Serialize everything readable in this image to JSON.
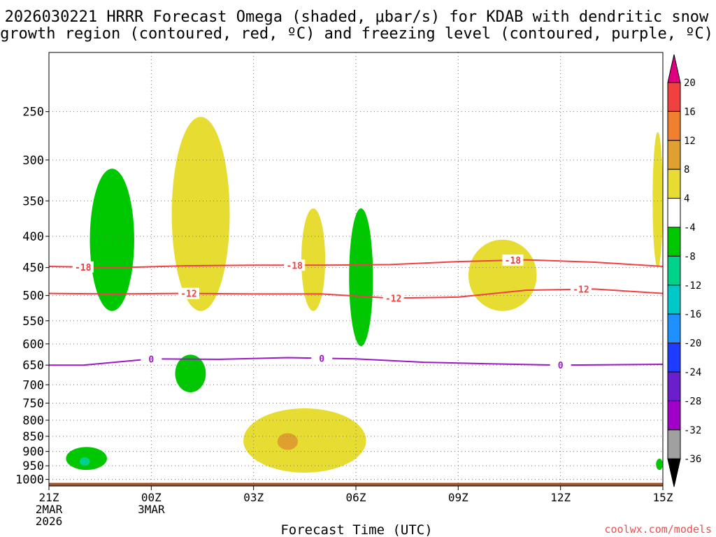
{
  "chart_data": {
    "type": "heatmap",
    "title_lines": [
      "2026030221 HRRR Forecast Omega (shaded, μbar/s) for KDAB with dendritic snow",
      "growth region (contoured, red, ºC) and freezing level (contoured, purple, ºC)"
    ],
    "xlabel": "Forecast Time (UTC)",
    "credit": "coolwx.com/models",
    "x_ticks": [
      {
        "hour": 0,
        "lines": [
          "21Z",
          "2MAR",
          "2026"
        ]
      },
      {
        "hour": 3,
        "lines": [
          "00Z",
          "3MAR"
        ]
      },
      {
        "hour": 6,
        "lines": [
          "03Z"
        ]
      },
      {
        "hour": 9,
        "lines": [
          "06Z"
        ]
      },
      {
        "hour": 12,
        "lines": [
          "09Z"
        ]
      },
      {
        "hour": 15,
        "lines": [
          "12Z"
        ]
      },
      {
        "hour": 18,
        "lines": [
          "15Z"
        ]
      }
    ],
    "x_range_hours": [
      0,
      18
    ],
    "y_range_hpa": [
      1025,
      200
    ],
    "y_ticks": [
      250,
      300,
      350,
      400,
      450,
      500,
      550,
      600,
      650,
      700,
      750,
      800,
      850,
      900,
      950,
      1000
    ],
    "colorbar": {
      "labels": [
        "20",
        "16",
        "12",
        "8",
        "4",
        "-4",
        "-8",
        "-12",
        "-16",
        "-20",
        "-24",
        "-28",
        "-32",
        "-36"
      ],
      "top_color": "#e0007f",
      "colors": [
        "#f04040",
        "#f07f30",
        "#e0a030",
        "#e6dc32",
        "#ffffff",
        "#00c800",
        "#00d28c",
        "#00c8c8",
        "#1e90ff",
        "#1e3cff",
        "#6a1ecc",
        "#a000c8",
        "#a0a0a0"
      ],
      "bottom_color": "#000000"
    },
    "omega_areas": [
      {
        "level": "-4 to -8",
        "color": "#00c800",
        "hour_range": [
          1.2,
          2.5
        ],
        "hpa_range": [
          310,
          530
        ]
      },
      {
        "level": "4 to 8",
        "color": "#e6dc32",
        "hour_range": [
          3.6,
          5.3
        ],
        "hpa_range": [
          255,
          530
        ]
      },
      {
        "level": "4 to 8",
        "color": "#e6dc32",
        "hour_range": [
          7.4,
          8.1
        ],
        "hpa_range": [
          360,
          530
        ]
      },
      {
        "level": "-4 to -8",
        "color": "#00c800",
        "hour_range": [
          8.8,
          9.5
        ],
        "hpa_range": [
          360,
          605
        ]
      },
      {
        "level": "-4 to -8",
        "color": "#00c800",
        "hour_range": [
          3.7,
          4.6
        ],
        "hpa_range": [
          625,
          720
        ]
      },
      {
        "level": "4 to 8",
        "color": "#e6dc32",
        "hour_range": [
          12.3,
          14.3
        ],
        "hpa_range": [
          405,
          530
        ]
      },
      {
        "level": "4 to 8",
        "color": "#e6dc32",
        "hour_range": [
          5.7,
          9.3
        ],
        "hpa_range": [
          765,
          975
        ]
      },
      {
        "level": "8 to 12",
        "color": "#e0a030",
        "hour_range": [
          6.7,
          7.3
        ],
        "hpa_range": [
          840,
          895
        ]
      },
      {
        "level": "-4 to -8",
        "color": "#00c800",
        "hour_range": [
          0.5,
          1.7
        ],
        "hpa_range": [
          885,
          965
        ]
      },
      {
        "level": "-8 to -12",
        "color": "#00d28c",
        "hour_range": [
          0.9,
          1.2
        ],
        "hpa_range": [
          920,
          950
        ]
      },
      {
        "level": "4 to 8",
        "color": "#e6dc32",
        "hour_range": [
          17.7,
          18
        ],
        "hpa_range": [
          270,
          450
        ]
      },
      {
        "level": "-4 to -8",
        "color": "#00c800",
        "hour_range": [
          17.8,
          18
        ],
        "hpa_range": [
          925,
          965
        ]
      }
    ],
    "isotherms": [
      {
        "label": "-18",
        "color": "#f04040",
        "hours": [
          0,
          2,
          4,
          6,
          8,
          10,
          12,
          14,
          16,
          18
        ],
        "hpa": [
          448,
          450,
          447,
          446,
          446,
          445,
          440,
          437,
          441,
          448
        ],
        "label_hours": [
          1.0,
          7.2,
          13.6
        ]
      },
      {
        "label": "-12",
        "color": "#f04040",
        "hours": [
          0,
          2,
          4,
          6,
          8,
          10,
          12,
          14,
          16,
          18
        ],
        "hpa": [
          496,
          497,
          496,
          497,
          497,
          505,
          503,
          490,
          488,
          496
        ],
        "label_hours": [
          4.1,
          10.1,
          15.6
        ]
      },
      {
        "label": "0",
        "color": "#9a18c8",
        "hours": [
          0,
          1,
          3,
          5,
          7,
          9,
          11,
          13,
          15,
          18
        ],
        "hpa": [
          650,
          650,
          635,
          636,
          632,
          635,
          643,
          647,
          650,
          648
        ],
        "label_hours": [
          3.0,
          8.0,
          15.0
        ]
      }
    ]
  }
}
